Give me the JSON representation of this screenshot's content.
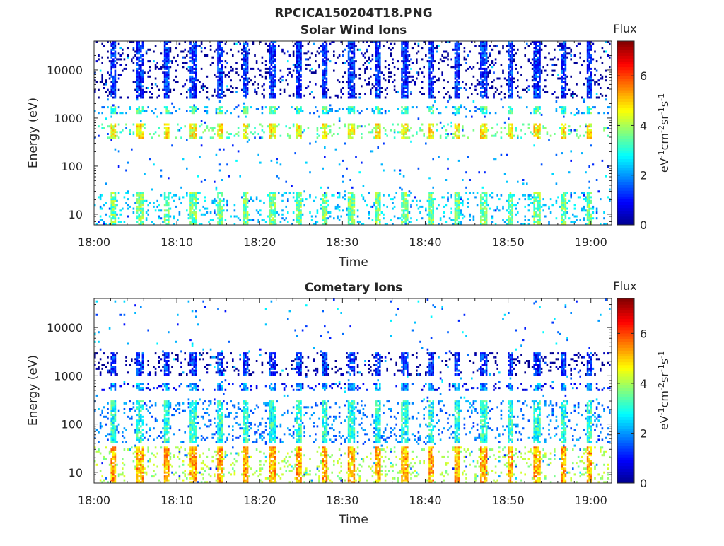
{
  "figure_title": "RPCICA150204T18.PNG",
  "colormap": [
    "#00008f",
    "#0000ff",
    "#0080ff",
    "#00ffff",
    "#80ff80",
    "#ffff00",
    "#ff8000",
    "#ff0000",
    "#800000"
  ],
  "chart_data": [
    {
      "type": "heatmap",
      "title": "Solar Wind Ions",
      "xlabel": "Time",
      "ylabel": "Energy (eV)",
      "x_tick_labels": [
        "18:00",
        "18:10",
        "18:20",
        "18:30",
        "18:40",
        "18:50",
        "19:00"
      ],
      "x_tick_minutes": [
        0,
        10,
        20,
        30,
        40,
        50,
        60
      ],
      "xlim_minutes": [
        0,
        62.5
      ],
      "y_scale": "log",
      "ylim": [
        6,
        40000
      ],
      "y_tick_labels": [
        "10",
        "100",
        "1000",
        "10000"
      ],
      "y_tick_values": [
        10,
        100,
        1000,
        10000
      ],
      "colorbar": {
        "title": "Flux",
        "label": "eV-1cm-2sr-1s-1",
        "range": [
          0,
          7.4
        ],
        "tick_labels": [
          "0",
          "2",
          "4",
          "6"
        ],
        "tick_values": [
          0,
          2,
          4,
          6
        ]
      },
      "sweep_period_minutes": 3.2,
      "sweep_start_minutes": 2.0,
      "features": [
        {
          "name": "solar-wind-peak",
          "energy_min_ev": 380,
          "energy_max_ev": 800,
          "flux": 4.6
        },
        {
          "name": "alpha-band",
          "energy_min_ev": 1200,
          "energy_max_ev": 1700,
          "flux": 3.2
        },
        {
          "name": "low-energy-band",
          "energy_min_ev": 6,
          "energy_max_ev": 28,
          "flux": 3.6
        },
        {
          "name": "sparse-high-energy",
          "energy_min_ev": 2500,
          "energy_max_ev": 40000,
          "flux": 1.2
        }
      ]
    },
    {
      "type": "heatmap",
      "title": "Cometary Ions",
      "xlabel": "Time",
      "ylabel": "Energy (eV)",
      "x_tick_labels": [
        "18:00",
        "18:10",
        "18:20",
        "18:30",
        "18:40",
        "18:50",
        "19:00"
      ],
      "x_tick_minutes": [
        0,
        10,
        20,
        30,
        40,
        50,
        60
      ],
      "xlim_minutes": [
        0,
        62.5
      ],
      "y_scale": "log",
      "ylim": [
        6,
        40000
      ],
      "y_tick_labels": [
        "10",
        "100",
        "1000",
        "10000"
      ],
      "y_tick_values": [
        10,
        100,
        1000,
        10000
      ],
      "colorbar": {
        "title": "Flux",
        "label": "eV-1cm-2sr-1s-1",
        "range": [
          0,
          7.4
        ],
        "tick_labels": [
          "0",
          "2",
          "4",
          "6"
        ],
        "tick_values": [
          0,
          2,
          4,
          6
        ]
      },
      "sweep_period_minutes": 3.2,
      "sweep_start_minutes": 2.0,
      "features": [
        {
          "name": "cometary-low-energy",
          "energy_min_ev": 6,
          "energy_max_ev": 35,
          "flux": 5.2
        },
        {
          "name": "cometary-mid",
          "energy_min_ev": 40,
          "energy_max_ev": 300,
          "flux": 3.0
        },
        {
          "name": "solar-wind-trace",
          "energy_min_ev": 480,
          "energy_max_ev": 700,
          "flux": 2.0
        },
        {
          "name": "alpha-trace",
          "energy_min_ev": 1000,
          "energy_max_ev": 3000,
          "flux": 1.2
        }
      ]
    }
  ]
}
